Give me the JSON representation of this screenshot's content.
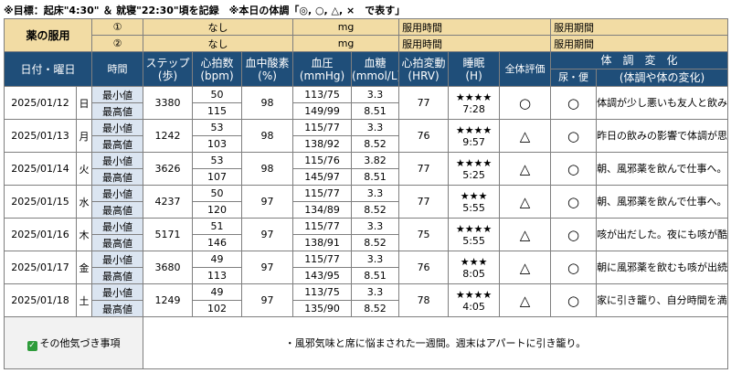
{
  "note": "※目標：起床\"4:30\" ＆ 就寝\"22:30\"頃を記録　※本日の体調「◎, ○, △, ×　で表す」",
  "medication": {
    "label": "薬の服用",
    "rows": [
      {
        "num": "①",
        "name": "なし",
        "unit": "mg",
        "time_label": "服用時間",
        "period_label": "服用期間"
      },
      {
        "num": "②",
        "name": "なし",
        "unit": "mg",
        "time_label": "服用時間",
        "period_label": "服用期間"
      }
    ]
  },
  "headers": {
    "date": "日付・曜日",
    "time": "時間",
    "steps": "ステップ\n(歩)",
    "pulse": "心拍数\n(bpm)",
    "spo2": "血中酸素\n(%)",
    "bp": "血圧\n(mmHg)",
    "glucose": "血糖\n(mmol/L)",
    "hrv": "心拍変動\n(HRV)",
    "sleep": "睡眠\n(H)",
    "overall": "全体評価",
    "condition": "体　調　変　化",
    "urine": "尿・便",
    "body_change": "(体調や体の変化)"
  },
  "min_label": "最小値",
  "max_label": "最高値",
  "days": [
    {
      "date": "2025/01/12",
      "dow": "日",
      "steps": "3380",
      "pulse_min": "50",
      "pulse_max": "115",
      "spo2": "98",
      "bp_min": "113/75",
      "bp_max": "149/99",
      "glu_min": "3.3",
      "glu_max": "8.51",
      "hrv": "77",
      "stars": "★★★★",
      "sleep": "7:28",
      "overall": "○",
      "urine": "○",
      "comment": "体調が少し悪いも友人と飲みへ。"
    },
    {
      "date": "2025/01/13",
      "dow": "月",
      "steps": "1242",
      "pulse_min": "53",
      "pulse_max": "103",
      "spo2": "98",
      "bp_min": "115/77",
      "bp_max": "138/92",
      "glu_min": "3.3",
      "glu_max": "8.52",
      "hrv": "76",
      "stars": "★★★★",
      "sleep": "9:57",
      "overall": "△",
      "urine": "○",
      "comment": "昨日の飲みの影響で体調が思わしくない。"
    },
    {
      "date": "2025/01/14",
      "dow": "火",
      "steps": "3626",
      "pulse_min": "53",
      "pulse_max": "107",
      "spo2": "98",
      "bp_min": "115/76",
      "bp_max": "145/97",
      "glu_min": "3.82",
      "glu_max": "8.51",
      "hrv": "77",
      "stars": "★★★★",
      "sleep": "5:25",
      "overall": "△",
      "urine": "○",
      "comment": "朝、風邪薬を飲んで仕事へ。熱はないも少しダルさが。"
    },
    {
      "date": "2025/01/15",
      "dow": "水",
      "steps": "4237",
      "pulse_min": "50",
      "pulse_max": "120",
      "spo2": "97",
      "bp_min": "115/77",
      "bp_max": "134/89",
      "glu_min": "3.3",
      "glu_max": "8.52",
      "hrv": "77",
      "stars": "★★★",
      "sleep": "5:55",
      "overall": "△",
      "urine": "○",
      "comment": "朝、風邪薬を飲んで仕事へ。熱はないも少しダルさが。"
    },
    {
      "date": "2025/01/16",
      "dow": "木",
      "steps": "5171",
      "pulse_min": "51",
      "pulse_max": "146",
      "spo2": "97",
      "bp_min": "115/77",
      "bp_max": "138/91",
      "glu_min": "3.3",
      "glu_max": "8.52",
      "hrv": "75",
      "stars": "★★★★",
      "sleep": "5:55",
      "overall": "△",
      "urine": "○",
      "comment": "咳が出だした。夜にも咳が酷く睡眠不足が続く"
    },
    {
      "date": "2025/01/17",
      "dow": "金",
      "steps": "3680",
      "pulse_min": "49",
      "pulse_max": "113",
      "spo2": "97",
      "bp_min": "115/77",
      "bp_max": "143/95",
      "glu_min": "3.3",
      "glu_max": "8.51",
      "hrv": "76",
      "stars": "★★★",
      "sleep": "8:05",
      "overall": "△",
      "urine": "○",
      "comment": "朝に風邪薬を飲むも咳が出続ける"
    },
    {
      "date": "2025/01/18",
      "dow": "土",
      "steps": "1249",
      "pulse_min": "49",
      "pulse_max": "102",
      "spo2": "97",
      "bp_min": "113/75",
      "bp_max": "135/90",
      "glu_min": "3.3",
      "glu_max": "8.52",
      "hrv": "78",
      "stars": "★★★★",
      "sleep": "4:05",
      "overall": "△",
      "urine": "○",
      "comment": "家に引き籠り、自分時間を満喫"
    }
  ],
  "footer": {
    "label": "その他気づき事項",
    "text": "・風邪気味と席に悩まされた一週間。週末はアパートに引き籠り。"
  },
  "colors": {
    "header_bg": "#1f4e79",
    "medication_bg": "#f2dca4",
    "minmax_bg": "#dbe5f1",
    "check_green": "#2e9c3b"
  }
}
